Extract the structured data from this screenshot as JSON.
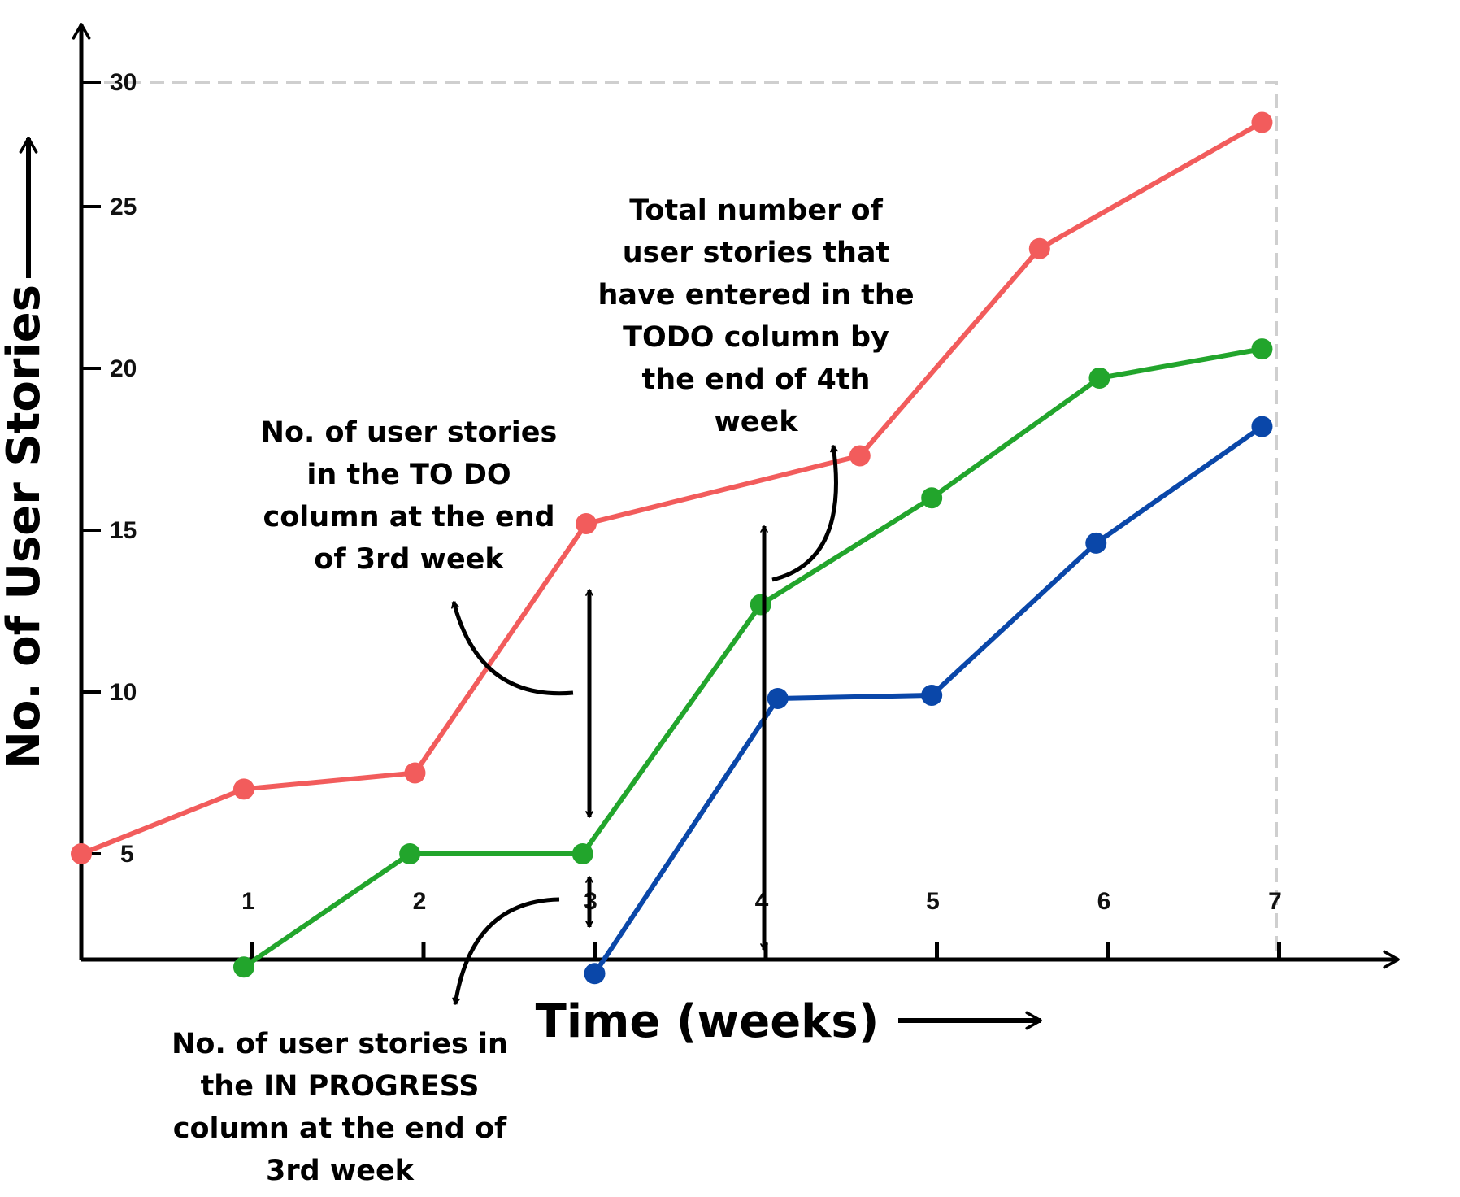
{
  "chart_data": {
    "type": "line",
    "title": "",
    "xlabel": "Time (weeks)",
    "ylabel": "No. of User Stories",
    "x_ticks": [
      "1",
      "2",
      "3",
      "4",
      "5",
      "6",
      "7"
    ],
    "y_ticks": [
      "5",
      "10",
      "15",
      "20",
      "25",
      "30"
    ],
    "xlim": [
      0,
      7
    ],
    "ylim": [
      1,
      30
    ],
    "grid": false,
    "legend": "none",
    "series": [
      {
        "color": "#f25c5c",
        "points": [
          [
            0,
            5.0
          ],
          [
            0.95,
            7.0
          ],
          [
            1.95,
            7.5
          ],
          [
            2.95,
            15.2
          ],
          [
            4.55,
            17.3
          ],
          [
            5.6,
            23.7
          ],
          [
            6.9,
            27.6
          ]
        ]
      },
      {
        "color": "#22a52c",
        "points": [
          [
            0.95,
            1.5
          ],
          [
            1.92,
            5.0
          ],
          [
            2.93,
            5.0
          ],
          [
            3.97,
            12.7
          ],
          [
            4.97,
            16.0
          ],
          [
            5.95,
            19.7
          ],
          [
            6.9,
            20.6
          ]
        ]
      },
      {
        "color": "#0a47a9",
        "points": [
          [
            3.0,
            1.3
          ],
          [
            4.07,
            9.8
          ],
          [
            4.97,
            9.9
          ],
          [
            5.93,
            14.6
          ],
          [
            6.9,
            18.2
          ]
        ]
      }
    ],
    "annotations": [
      {
        "id": "todo_week3",
        "lines": [
          "No. of user stories",
          "in the TO DO",
          "column at the end",
          "of 3rd week"
        ]
      },
      {
        "id": "total_week4",
        "lines": [
          "Total number of",
          "user stories that",
          "have entered in the",
          "TODO column by",
          "the end of 4th",
          "week"
        ]
      },
      {
        "id": "inprogress_week3",
        "lines": [
          "No. of user stories in",
          "the IN PROGRESS",
          "column at the end of",
          "3rd week"
        ]
      }
    ]
  }
}
